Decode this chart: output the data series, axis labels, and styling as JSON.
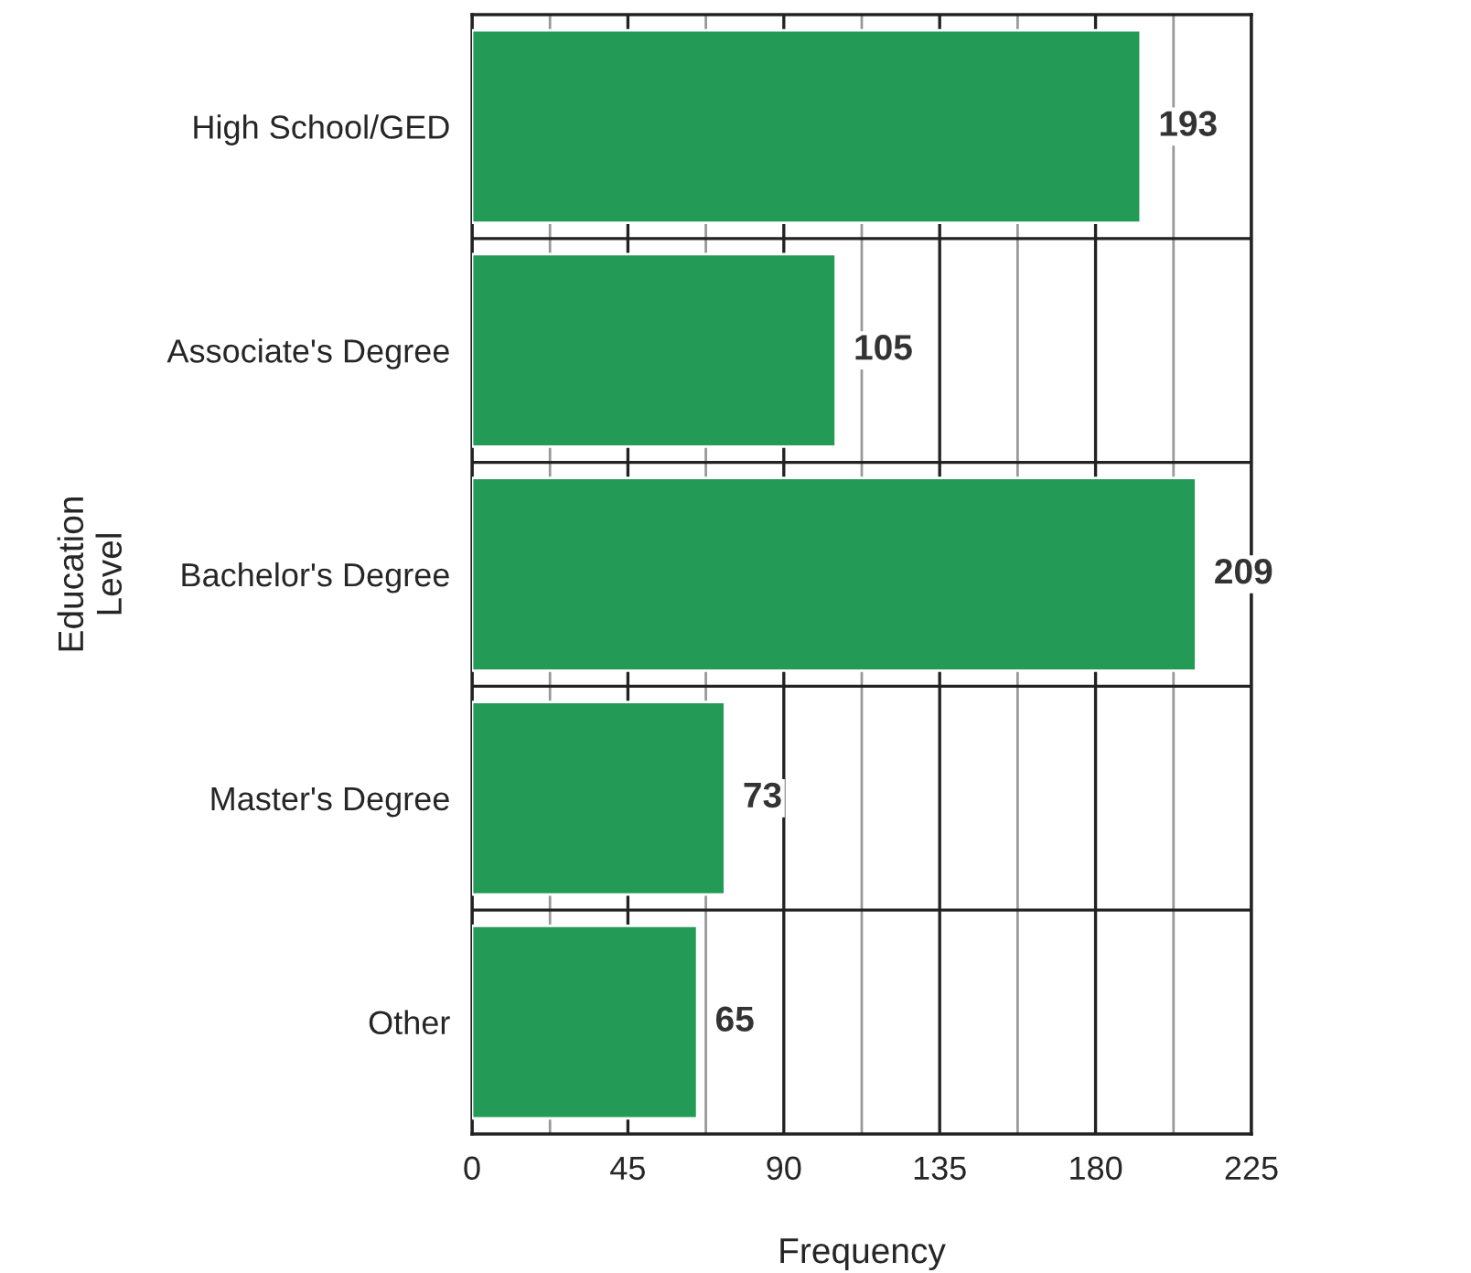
{
  "chart_data": {
    "type": "bar",
    "orientation": "horizontal",
    "xlabel": "Frequency",
    "ylabel": "Education\nLevel",
    "categories": [
      "High School/GED",
      "Associate's Degree",
      "Bachelor's Degree",
      "Master's Degree",
      "Other"
    ],
    "values": [
      193,
      105,
      209,
      73,
      65
    ],
    "color": "#239b56",
    "xlim": [
      0,
      225
    ],
    "xticks": [
      0,
      {
        "value": 22.5,
        "label": null
      },
      45,
      {
        "value": 67.5,
        "label": null
      },
      90,
      {
        "value": 112.5,
        "label": null
      },
      135,
      {
        "value": 157.5,
        "label": null
      },
      180,
      {
        "value": 202.5,
        "label": null
      },
      225
    ],
    "grid": "x",
    "data_labels": true
  }
}
